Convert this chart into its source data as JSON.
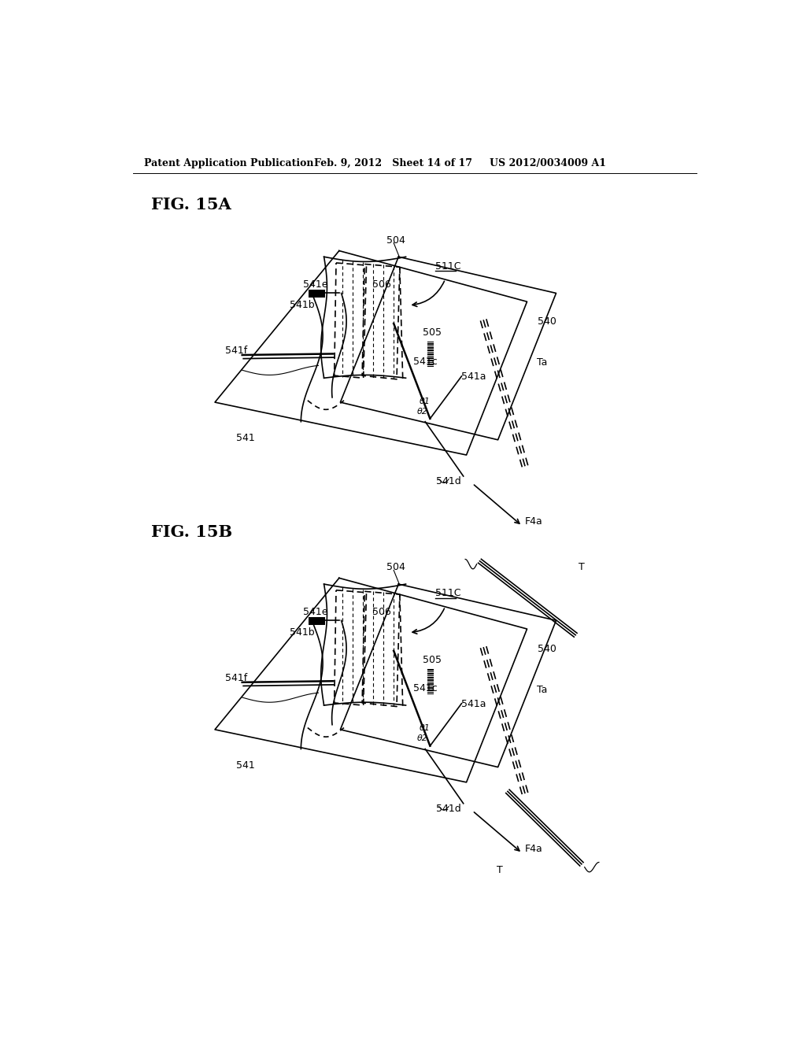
{
  "header_left": "Patent Application Publication",
  "header_center": "Feb. 9, 2012   Sheet 14 of 17",
  "header_right": "US 2012/0034009 A1",
  "bg_color": "#ffffff",
  "line_color": "#000000"
}
